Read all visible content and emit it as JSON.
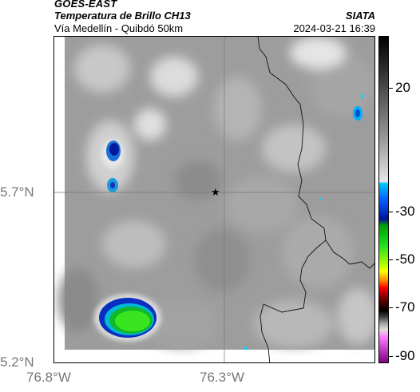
{
  "header": {
    "title": "GOES-EAST",
    "subtitle": "Temperatura de Brillo CH13",
    "location": "Vía Medellín - Quibdó 50km",
    "organization": "SIATA",
    "datetime": "2024-03-21 16:39"
  },
  "map": {
    "marker_icon": "star-icon",
    "lat_labels": [
      "5.7°N",
      "5.2°N"
    ],
    "lon_labels": [
      "76.8°W",
      "76.3°W"
    ]
  },
  "colorbar": {
    "labels": [
      "20",
      "-30",
      "-50",
      "-70",
      "-90"
    ],
    "colors": {
      "warm_top": "#000000",
      "cold_mid": "#0000ff",
      "green": "#00cc00",
      "yellow": "#ffff00",
      "red": "#ff0000",
      "magenta": "#cc00cc"
    }
  }
}
